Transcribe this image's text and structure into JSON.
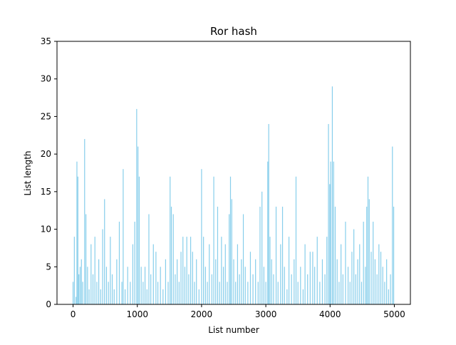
{
  "chart_data": {
    "type": "bar",
    "title": "Ror hash",
    "xlabel": "List number",
    "ylabel": "List length",
    "xlim": [
      -250,
      5250
    ],
    "ylim": [
      0,
      35
    ],
    "xticks": [
      0,
      1000,
      2000,
      3000,
      4000,
      5000
    ],
    "yticks": [
      0,
      5,
      10,
      15,
      20,
      25,
      30,
      35
    ],
    "grid": false,
    "bar_color": "#87ceeb",
    "bars": [
      {
        "x": 0,
        "y": 3
      },
      {
        "x": 20,
        "y": 9
      },
      {
        "x": 45,
        "y": 1
      },
      {
        "x": 60,
        "y": 19
      },
      {
        "x": 75,
        "y": 17
      },
      {
        "x": 90,
        "y": 4
      },
      {
        "x": 110,
        "y": 5
      },
      {
        "x": 130,
        "y": 6
      },
      {
        "x": 150,
        "y": 3
      },
      {
        "x": 180,
        "y": 22
      },
      {
        "x": 200,
        "y": 12
      },
      {
        "x": 225,
        "y": 5
      },
      {
        "x": 250,
        "y": 2
      },
      {
        "x": 280,
        "y": 8
      },
      {
        "x": 310,
        "y": 4
      },
      {
        "x": 340,
        "y": 9
      },
      {
        "x": 370,
        "y": 3
      },
      {
        "x": 400,
        "y": 6
      },
      {
        "x": 430,
        "y": 2
      },
      {
        "x": 460,
        "y": 10
      },
      {
        "x": 490,
        "y": 14
      },
      {
        "x": 520,
        "y": 5
      },
      {
        "x": 550,
        "y": 3
      },
      {
        "x": 580,
        "y": 9
      },
      {
        "x": 610,
        "y": 4
      },
      {
        "x": 640,
        "y": 2
      },
      {
        "x": 680,
        "y": 6
      },
      {
        "x": 720,
        "y": 11
      },
      {
        "x": 760,
        "y": 3
      },
      {
        "x": 780,
        "y": 18
      },
      {
        "x": 810,
        "y": 2
      },
      {
        "x": 850,
        "y": 5
      },
      {
        "x": 890,
        "y": 3
      },
      {
        "x": 930,
        "y": 8
      },
      {
        "x": 960,
        "y": 11
      },
      {
        "x": 990,
        "y": 26
      },
      {
        "x": 1010,
        "y": 21
      },
      {
        "x": 1030,
        "y": 17
      },
      {
        "x": 1060,
        "y": 5
      },
      {
        "x": 1090,
        "y": 3
      },
      {
        "x": 1120,
        "y": 5
      },
      {
        "x": 1150,
        "y": 2
      },
      {
        "x": 1180,
        "y": 12
      },
      {
        "x": 1210,
        "y": 4
      },
      {
        "x": 1250,
        "y": 8
      },
      {
        "x": 1290,
        "y": 7
      },
      {
        "x": 1320,
        "y": 3
      },
      {
        "x": 1360,
        "y": 5
      },
      {
        "x": 1400,
        "y": 2
      },
      {
        "x": 1440,
        "y": 6
      },
      {
        "x": 1480,
        "y": 3
      },
      {
        "x": 1510,
        "y": 17
      },
      {
        "x": 1530,
        "y": 13
      },
      {
        "x": 1560,
        "y": 12
      },
      {
        "x": 1590,
        "y": 4
      },
      {
        "x": 1620,
        "y": 6
      },
      {
        "x": 1650,
        "y": 3
      },
      {
        "x": 1680,
        "y": 7
      },
      {
        "x": 1710,
        "y": 9
      },
      {
        "x": 1740,
        "y": 5
      },
      {
        "x": 1770,
        "y": 9
      },
      {
        "x": 1800,
        "y": 4
      },
      {
        "x": 1830,
        "y": 9
      },
      {
        "x": 1860,
        "y": 7
      },
      {
        "x": 1890,
        "y": 3
      },
      {
        "x": 1920,
        "y": 6
      },
      {
        "x": 1960,
        "y": 2
      },
      {
        "x": 2000,
        "y": 18
      },
      {
        "x": 2030,
        "y": 9
      },
      {
        "x": 2060,
        "y": 5
      },
      {
        "x": 2090,
        "y": 3
      },
      {
        "x": 2120,
        "y": 8
      },
      {
        "x": 2160,
        "y": 4
      },
      {
        "x": 2190,
        "y": 17
      },
      {
        "x": 2220,
        "y": 6
      },
      {
        "x": 2250,
        "y": 13
      },
      {
        "x": 2280,
        "y": 3
      },
      {
        "x": 2310,
        "y": 9
      },
      {
        "x": 2340,
        "y": 5
      },
      {
        "x": 2370,
        "y": 8
      },
      {
        "x": 2400,
        "y": 3
      },
      {
        "x": 2430,
        "y": 12
      },
      {
        "x": 2450,
        "y": 17
      },
      {
        "x": 2470,
        "y": 14
      },
      {
        "x": 2500,
        "y": 6
      },
      {
        "x": 2530,
        "y": 3
      },
      {
        "x": 2560,
        "y": 8
      },
      {
        "x": 2590,
        "y": 4
      },
      {
        "x": 2620,
        "y": 6
      },
      {
        "x": 2650,
        "y": 12
      },
      {
        "x": 2680,
        "y": 5
      },
      {
        "x": 2720,
        "y": 3
      },
      {
        "x": 2760,
        "y": 7
      },
      {
        "x": 2800,
        "y": 4
      },
      {
        "x": 2840,
        "y": 6
      },
      {
        "x": 2880,
        "y": 3
      },
      {
        "x": 2910,
        "y": 13
      },
      {
        "x": 2940,
        "y": 15
      },
      {
        "x": 2970,
        "y": 5
      },
      {
        "x": 3000,
        "y": 3
      },
      {
        "x": 3030,
        "y": 19
      },
      {
        "x": 3045,
        "y": 24
      },
      {
        "x": 3065,
        "y": 9
      },
      {
        "x": 3090,
        "y": 6
      },
      {
        "x": 3120,
        "y": 4
      },
      {
        "x": 3160,
        "y": 13
      },
      {
        "x": 3190,
        "y": 3
      },
      {
        "x": 3230,
        "y": 8
      },
      {
        "x": 3260,
        "y": 13
      },
      {
        "x": 3290,
        "y": 5
      },
      {
        "x": 3330,
        "y": 2
      },
      {
        "x": 3360,
        "y": 9
      },
      {
        "x": 3400,
        "y": 4
      },
      {
        "x": 3440,
        "y": 6
      },
      {
        "x": 3470,
        "y": 17
      },
      {
        "x": 3500,
        "y": 3
      },
      {
        "x": 3540,
        "y": 5
      },
      {
        "x": 3580,
        "y": 2
      },
      {
        "x": 3610,
        "y": 8
      },
      {
        "x": 3650,
        "y": 4
      },
      {
        "x": 3690,
        "y": 7
      },
      {
        "x": 3730,
        "y": 7
      },
      {
        "x": 3760,
        "y": 5
      },
      {
        "x": 3800,
        "y": 9
      },
      {
        "x": 3840,
        "y": 3
      },
      {
        "x": 3880,
        "y": 6
      },
      {
        "x": 3920,
        "y": 4
      },
      {
        "x": 3950,
        "y": 9
      },
      {
        "x": 3975,
        "y": 24
      },
      {
        "x": 3995,
        "y": 16
      },
      {
        "x": 4010,
        "y": 19
      },
      {
        "x": 4035,
        "y": 29
      },
      {
        "x": 4055,
        "y": 19
      },
      {
        "x": 4080,
        "y": 13
      },
      {
        "x": 4110,
        "y": 6
      },
      {
        "x": 4140,
        "y": 3
      },
      {
        "x": 4170,
        "y": 8
      },
      {
        "x": 4200,
        "y": 4
      },
      {
        "x": 4240,
        "y": 11
      },
      {
        "x": 4280,
        "y": 5
      },
      {
        "x": 4310,
        "y": 3
      },
      {
        "x": 4340,
        "y": 7
      },
      {
        "x": 4370,
        "y": 10
      },
      {
        "x": 4400,
        "y": 4
      },
      {
        "x": 4430,
        "y": 6
      },
      {
        "x": 4460,
        "y": 8
      },
      {
        "x": 4490,
        "y": 3
      },
      {
        "x": 4520,
        "y": 11
      },
      {
        "x": 4550,
        "y": 5
      },
      {
        "x": 4570,
        "y": 13
      },
      {
        "x": 4590,
        "y": 17
      },
      {
        "x": 4610,
        "y": 14
      },
      {
        "x": 4640,
        "y": 7
      },
      {
        "x": 4670,
        "y": 11
      },
      {
        "x": 4700,
        "y": 6
      },
      {
        "x": 4730,
        "y": 4
      },
      {
        "x": 4760,
        "y": 8
      },
      {
        "x": 4790,
        "y": 7
      },
      {
        "x": 4820,
        "y": 5
      },
      {
        "x": 4850,
        "y": 3
      },
      {
        "x": 4880,
        "y": 6
      },
      {
        "x": 4910,
        "y": 2
      },
      {
        "x": 4940,
        "y": 4
      },
      {
        "x": 4970,
        "y": 21
      },
      {
        "x": 4990,
        "y": 13
      }
    ]
  }
}
